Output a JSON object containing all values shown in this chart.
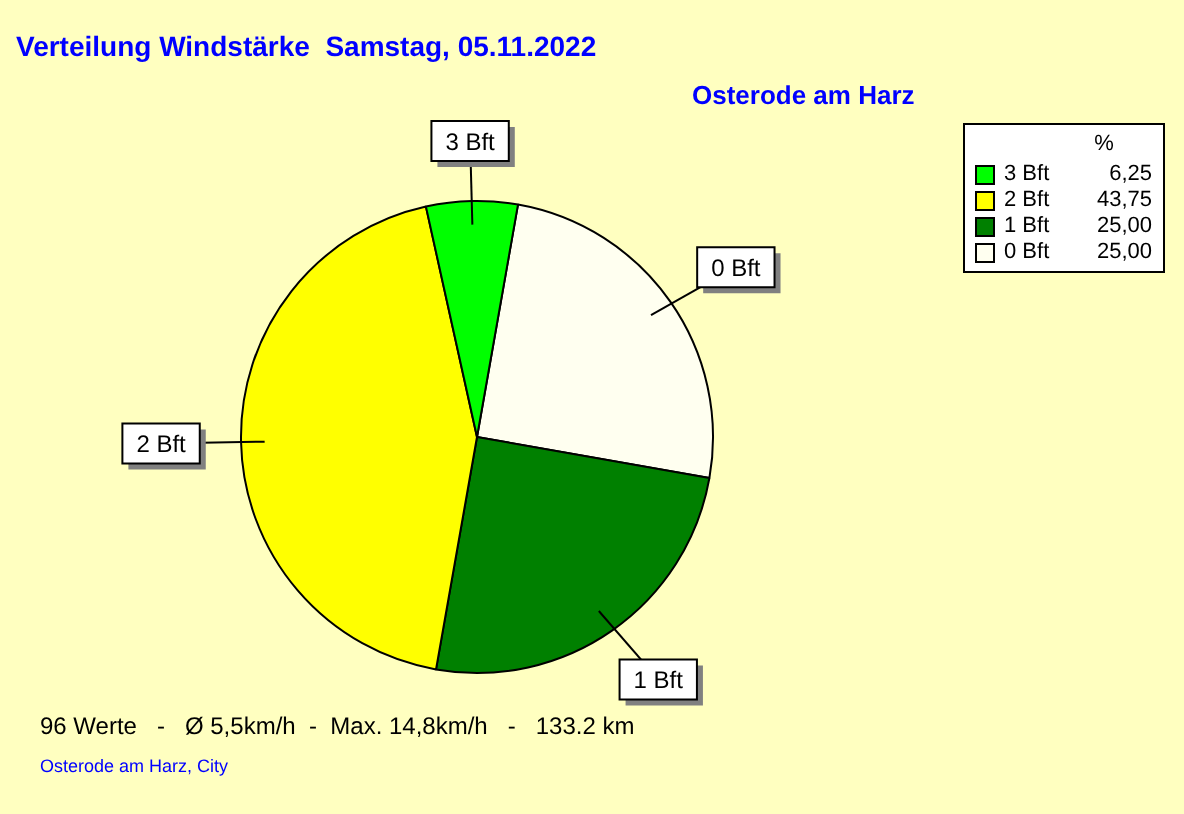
{
  "chart_data": {
    "type": "pie",
    "title": "Verteilung Windstärke  Samstag, 05.11.2022",
    "subtitle": "Osterode am Harz",
    "categories": [
      "0 Bft",
      "1 Bft",
      "2 Bft",
      "3 Bft"
    ],
    "values": [
      25,
      25,
      43.75,
      6.25
    ],
    "colors": [
      "#fffff0",
      "#008000",
      "#ffff00",
      "#00ff00"
    ],
    "value_labels": [
      "25,00",
      "25,00",
      "43,75",
      "6,25"
    ],
    "legend_title": "%",
    "legend": "top right",
    "annotations": [
      "96 Werte   -   Ø 5,5km/h  -  Max. 14,8km/h   -   133.2 km",
      "Osterode am Harz, City"
    ]
  }
}
